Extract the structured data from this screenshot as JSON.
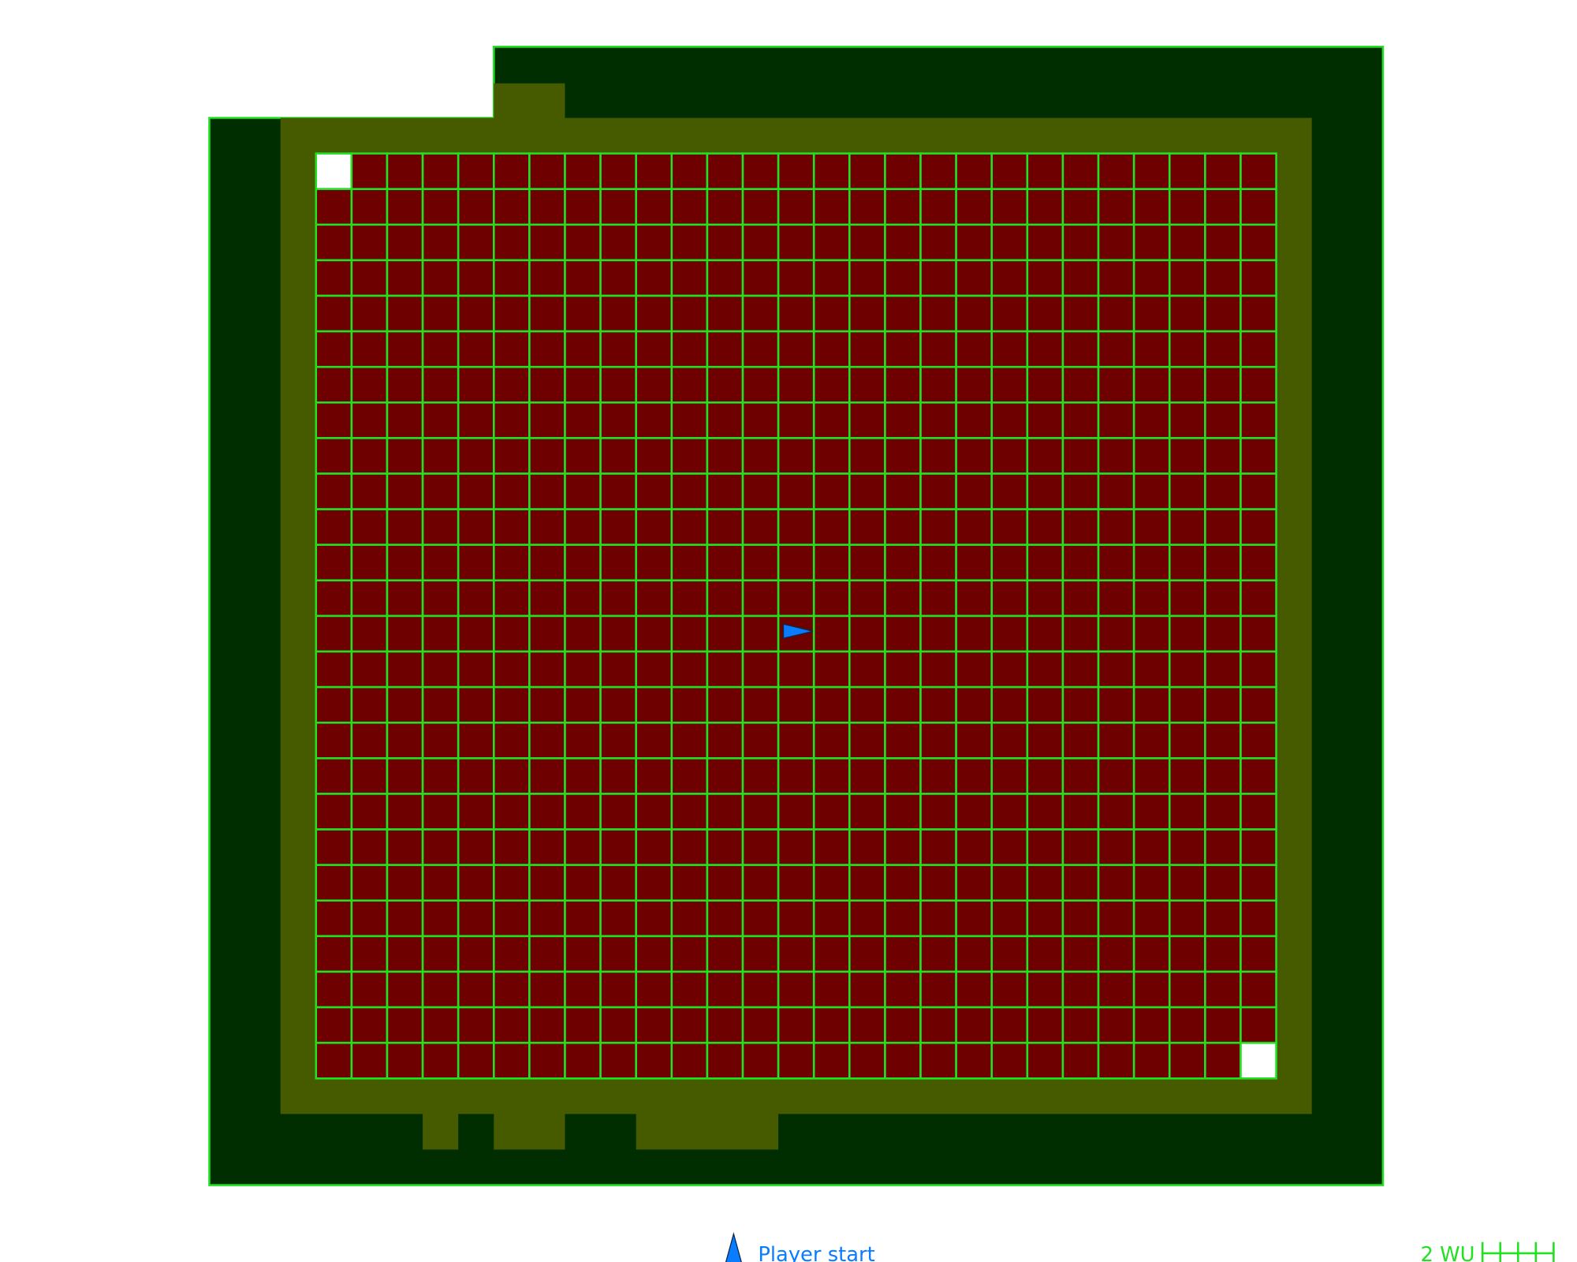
{
  "legend": {
    "player_start": "Player start"
  },
  "scale_bar": {
    "label": "2 WU"
  }
}
